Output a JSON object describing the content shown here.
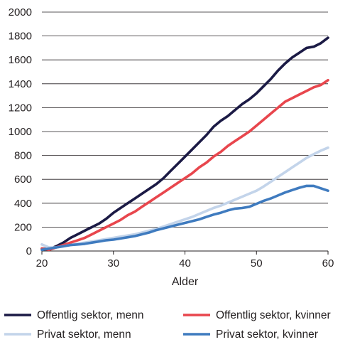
{
  "chart_data": {
    "type": "line",
    "xlabel": "Alder",
    "ylabel": "",
    "xlim": [
      20,
      60
    ],
    "ylim": [
      0,
      2000
    ],
    "xticks": [
      20,
      30,
      40,
      50,
      60
    ],
    "yticks": [
      0,
      200,
      400,
      600,
      800,
      1000,
      1200,
      1400,
      1600,
      1800,
      2000
    ],
    "grid": "horizontal",
    "legend_position": "bottom",
    "x": [
      20,
      21,
      22,
      23,
      24,
      25,
      26,
      27,
      28,
      29,
      30,
      31,
      32,
      33,
      34,
      35,
      36,
      37,
      38,
      39,
      40,
      41,
      42,
      43,
      44,
      45,
      46,
      47,
      48,
      49,
      50,
      51,
      52,
      53,
      54,
      55,
      56,
      57,
      58,
      59,
      60
    ],
    "series": [
      {
        "name": "Offentlig sektor, menn",
        "color": "#1b1a45",
        "values": [
          20,
          15,
          40,
          70,
          110,
          140,
          170,
          200,
          230,
          270,
          320,
          360,
          400,
          440,
          480,
          520,
          560,
          610,
          670,
          730,
          790,
          850,
          910,
          970,
          1040,
          1090,
          1130,
          1180,
          1230,
          1270,
          1320,
          1380,
          1440,
          1510,
          1570,
          1620,
          1660,
          1700,
          1710,
          1740,
          1785
        ]
      },
      {
        "name": "Offentlig sektor, kvinner",
        "color": "#e8464d",
        "values": [
          20,
          10,
          30,
          50,
          70,
          90,
          110,
          140,
          170,
          200,
          230,
          260,
          300,
          330,
          370,
          410,
          450,
          490,
          530,
          570,
          610,
          650,
          700,
          740,
          790,
          830,
          880,
          920,
          960,
          1000,
          1050,
          1100,
          1150,
          1200,
          1250,
          1280,
          1310,
          1340,
          1370,
          1390,
          1430
        ]
      },
      {
        "name": "Privat sektor, menn",
        "color": "#c3d4ea",
        "values": [
          55,
          30,
          30,
          40,
          50,
          60,
          70,
          80,
          90,
          100,
          110,
          120,
          130,
          140,
          155,
          170,
          185,
          205,
          225,
          245,
          265,
          285,
          310,
          335,
          360,
          380,
          405,
          430,
          455,
          480,
          505,
          540,
          580,
          620,
          660,
          700,
          740,
          780,
          810,
          840,
          865
        ]
      },
      {
        "name": "Privat sektor, kvinner",
        "color": "#3f7bbf",
        "values": [
          10,
          20,
          30,
          40,
          50,
          55,
          60,
          70,
          80,
          90,
          95,
          105,
          115,
          125,
          140,
          155,
          175,
          190,
          205,
          220,
          235,
          250,
          265,
          285,
          305,
          320,
          340,
          355,
          360,
          370,
          395,
          420,
          440,
          465,
          490,
          510,
          530,
          545,
          545,
          525,
          505
        ]
      }
    ]
  }
}
